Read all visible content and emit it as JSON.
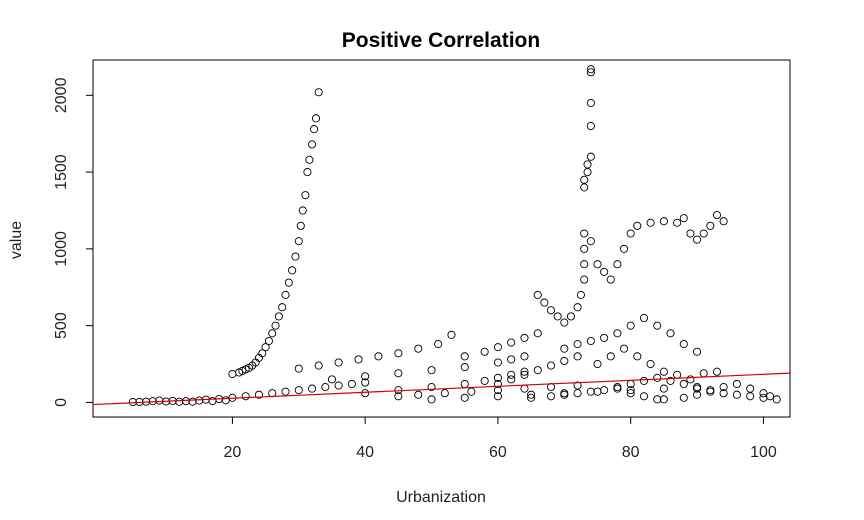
{
  "chart_data": {
    "type": "scatter",
    "title": "Positive Correlation",
    "xlabel": "Urbanization",
    "ylabel": "value",
    "xlim": [
      -1,
      104
    ],
    "ylim": [
      -95,
      2230
    ],
    "x_ticks": [
      20,
      40,
      60,
      80,
      100
    ],
    "y_ticks": [
      0,
      500,
      1000,
      1500,
      2000
    ],
    "colors": {
      "points": "#000000",
      "trend_line": "#d40000"
    },
    "trend_line": {
      "intercept": -12,
      "slope": 1.95
    },
    "series": [
      {
        "values": [
          [
            5,
            2
          ],
          [
            6,
            3
          ],
          [
            7,
            5
          ],
          [
            8,
            8
          ],
          [
            9,
            12
          ],
          [
            10,
            6
          ],
          [
            11,
            10
          ],
          [
            12,
            4
          ],
          [
            13,
            8
          ],
          [
            14,
            5
          ],
          [
            15,
            12
          ],
          [
            16,
            18
          ],
          [
            17,
            9
          ],
          [
            18,
            22
          ],
          [
            19,
            14
          ],
          [
            20,
            30
          ],
          [
            20,
            185
          ],
          [
            21,
            195
          ],
          [
            21.5,
            205
          ],
          [
            22,
            215
          ],
          [
            22.5,
            225
          ],
          [
            23,
            240
          ],
          [
            23.5,
            260
          ],
          [
            24,
            290
          ],
          [
            24.5,
            320
          ],
          [
            25,
            360
          ],
          [
            25.5,
            400
          ],
          [
            26,
            450
          ],
          [
            26.5,
            500
          ],
          [
            27,
            560
          ],
          [
            27.5,
            620
          ],
          [
            28,
            700
          ],
          [
            28.5,
            780
          ],
          [
            29,
            860
          ],
          [
            29.5,
            950
          ],
          [
            30,
            1050
          ],
          [
            30.3,
            1150
          ],
          [
            30.6,
            1250
          ],
          [
            31,
            1350
          ],
          [
            31.3,
            1500
          ],
          [
            31.6,
            1580
          ],
          [
            32,
            1680
          ],
          [
            32.3,
            1780
          ],
          [
            32.6,
            1850
          ],
          [
            33,
            2020
          ],
          [
            22,
            40
          ],
          [
            24,
            50
          ],
          [
            26,
            60
          ],
          [
            28,
            70
          ],
          [
            30,
            80
          ],
          [
            32,
            90
          ],
          [
            34,
            100
          ],
          [
            36,
            110
          ],
          [
            38,
            120
          ],
          [
            40,
            130
          ],
          [
            30,
            220
          ],
          [
            33,
            240
          ],
          [
            36,
            260
          ],
          [
            39,
            280
          ],
          [
            42,
            300
          ],
          [
            45,
            320
          ],
          [
            48,
            350
          ],
          [
            51,
            380
          ],
          [
            53,
            440
          ],
          [
            35,
            150
          ],
          [
            40,
            170
          ],
          [
            45,
            190
          ],
          [
            50,
            210
          ],
          [
            55,
            230
          ],
          [
            60,
            260
          ],
          [
            62,
            280
          ],
          [
            64,
            300
          ],
          [
            40,
            60
          ],
          [
            45,
            80
          ],
          [
            50,
            100
          ],
          [
            55,
            120
          ],
          [
            58,
            140
          ],
          [
            60,
            160
          ],
          [
            62,
            180
          ],
          [
            64,
            200
          ],
          [
            55,
            300
          ],
          [
            58,
            330
          ],
          [
            60,
            360
          ],
          [
            62,
            390
          ],
          [
            64,
            420
          ],
          [
            66,
            450
          ],
          [
            50,
            20
          ],
          [
            55,
            30
          ],
          [
            60,
            40
          ],
          [
            65,
            50
          ],
          [
            70,
            60
          ],
          [
            75,
            70
          ],
          [
            80,
            80
          ],
          [
            85,
            90
          ],
          [
            90,
            100
          ],
          [
            60,
            120
          ],
          [
            62,
            150
          ],
          [
            64,
            180
          ],
          [
            66,
            210
          ],
          [
            68,
            240
          ],
          [
            70,
            270
          ],
          [
            72,
            300
          ],
          [
            66,
            700
          ],
          [
            67,
            650
          ],
          [
            68,
            600
          ],
          [
            69,
            560
          ],
          [
            70,
            520
          ],
          [
            71,
            560
          ],
          [
            72,
            620
          ],
          [
            72.5,
            700
          ],
          [
            73,
            800
          ],
          [
            73,
            900
          ],
          [
            73,
            1000
          ],
          [
            73,
            1100
          ],
          [
            73,
            1400
          ],
          [
            73,
            1450
          ],
          [
            73.5,
            1500
          ],
          [
            73.5,
            1550
          ],
          [
            74,
            1600
          ],
          [
            74,
            1800
          ],
          [
            74,
            1950
          ],
          [
            74,
            2150
          ],
          [
            74,
            2170
          ],
          [
            74,
            1050
          ],
          [
            75,
            900
          ],
          [
            76,
            850
          ],
          [
            77,
            800
          ],
          [
            78,
            900
          ],
          [
            79,
            1000
          ],
          [
            80,
            1100
          ],
          [
            81,
            1150
          ],
          [
            83,
            1170
          ],
          [
            85,
            1180
          ],
          [
            87,
            1170
          ],
          [
            88,
            1200
          ],
          [
            89,
            1100
          ],
          [
            90,
            1060
          ],
          [
            91,
            1100
          ],
          [
            92,
            1150
          ],
          [
            93,
            1220
          ],
          [
            94,
            1180
          ],
          [
            70,
            350
          ],
          [
            72,
            380
          ],
          [
            74,
            400
          ],
          [
            76,
            420
          ],
          [
            78,
            450
          ],
          [
            80,
            500
          ],
          [
            82,
            550
          ],
          [
            84,
            500
          ],
          [
            86,
            450
          ],
          [
            88,
            380
          ],
          [
            90,
            330
          ],
          [
            75,
            250
          ],
          [
            77,
            300
          ],
          [
            79,
            350
          ],
          [
            81,
            300
          ],
          [
            83,
            250
          ],
          [
            85,
            200
          ],
          [
            87,
            180
          ],
          [
            89,
            150
          ],
          [
            91,
            190
          ],
          [
            93,
            200
          ],
          [
            78,
            100
          ],
          [
            80,
            120
          ],
          [
            82,
            140
          ],
          [
            84,
            160
          ],
          [
            86,
            140
          ],
          [
            88,
            120
          ],
          [
            90,
            90
          ],
          [
            92,
            70
          ],
          [
            94,
            60
          ],
          [
            96,
            50
          ],
          [
            98,
            40
          ],
          [
            100,
            30
          ],
          [
            85,
            20
          ],
          [
            88,
            30
          ],
          [
            90,
            50
          ],
          [
            92,
            80
          ],
          [
            94,
            100
          ],
          [
            96,
            120
          ],
          [
            98,
            90
          ],
          [
            100,
            60
          ],
          [
            101,
            40
          ],
          [
            102,
            20
          ],
          [
            65,
            30
          ],
          [
            68,
            40
          ],
          [
            70,
            50
          ],
          [
            72,
            60
          ],
          [
            74,
            70
          ],
          [
            76,
            80
          ],
          [
            78,
            90
          ],
          [
            80,
            60
          ],
          [
            82,
            40
          ],
          [
            84,
            20
          ],
          [
            45,
            40
          ],
          [
            48,
            50
          ],
          [
            52,
            60
          ],
          [
            56,
            70
          ],
          [
            60,
            80
          ],
          [
            64,
            90
          ],
          [
            68,
            100
          ],
          [
            72,
            110
          ]
        ]
      }
    ]
  }
}
